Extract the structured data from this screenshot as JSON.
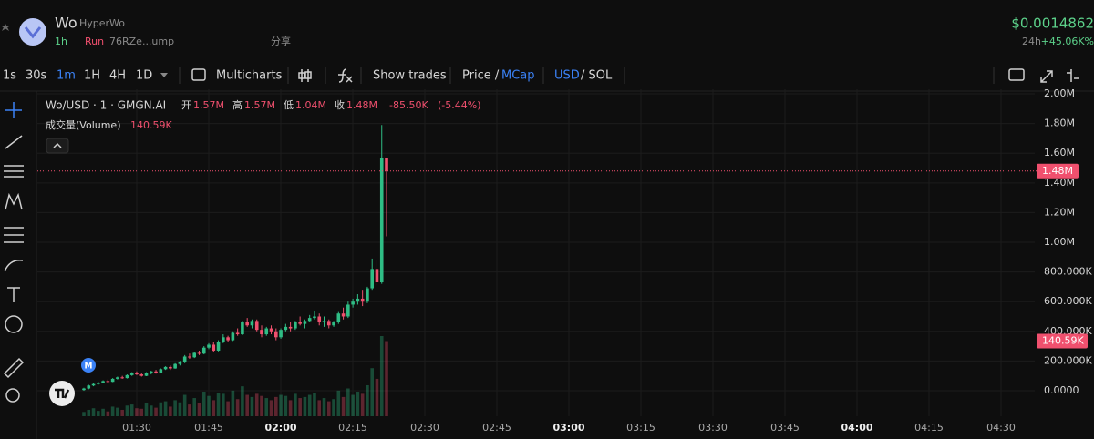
{
  "header": {
    "symbol": "Wo",
    "name": "HyperWo",
    "age": "1h",
    "status": "Run",
    "address": "76RZe...ump",
    "share": "分享",
    "price": "$0.0014862",
    "period": "24h",
    "change": "+45.06K%"
  },
  "toolbar": {
    "intervals": [
      "1s",
      "30s",
      "1m",
      "1H",
      "4H",
      "1D"
    ],
    "multicharts": "Multicharts",
    "show_trades": "Show trades",
    "price": "Price /",
    "mcap": "MCap",
    "usd": "USD",
    "sol": "/ SOL"
  },
  "chart_data": {
    "type": "candlestick",
    "title": "Wo/USD · 1 · GMGN.AI",
    "ohlc_legend": [
      {
        "name": "开",
        "value": 1570000,
        "label": "1.57M"
      },
      {
        "name": "高",
        "value": 1570000,
        "label": "1.57M"
      },
      {
        "name": "低",
        "value": 1040000,
        "label": "1.04M"
      },
      {
        "name": "收",
        "value": 1480000,
        "label": "1.48M"
      }
    ],
    "change": {
      "value": -85500,
      "label": "-85.50K"
    },
    "change_pct": {
      "value": -5.44,
      "label": "(-5.44%)"
    },
    "volume_title": "成交量(Volume)",
    "volume_last": {
      "value": 140590,
      "label": "140.59K"
    },
    "price_last": {
      "value": 1480000,
      "label": "1.48M"
    },
    "event_marker": "M",
    "up_color": "#2fbd85",
    "down_color": "#f0506e",
    "ylim": [
      -172000,
      2031000
    ],
    "yticks": [
      {
        "value": 0,
        "label": "0.0000"
      },
      {
        "value": 200000,
        "label": "200.000K"
      },
      {
        "value": 400000,
        "label": "400.000K"
      },
      {
        "value": 600000,
        "label": "600.000K"
      },
      {
        "value": 800000,
        "label": "800.000K"
      },
      {
        "value": 1000000,
        "label": "1.00M"
      },
      {
        "value": 1200000,
        "label": "1.20M"
      },
      {
        "value": 1400000,
        "label": "1.40M"
      },
      {
        "value": 1600000,
        "label": "1.60M"
      },
      {
        "value": 1800000,
        "label": "1.80M"
      },
      {
        "value": 2000000,
        "label": "2.00M"
      }
    ],
    "xticks": [
      "01:30",
      "01:45",
      "02:00",
      "02:15",
      "02:30",
      "02:45",
      "03:00",
      "03:15",
      "03:30",
      "03:45",
      "04:00",
      "04:15",
      "04:30"
    ],
    "grid": true,
    "candles": [
      [
        5000,
        20000,
        0,
        15000
      ],
      [
        15000,
        40000,
        10000,
        35000
      ],
      [
        35000,
        50000,
        30000,
        45000
      ],
      [
        45000,
        60000,
        40000,
        55000
      ],
      [
        55000,
        70000,
        50000,
        65000
      ],
      [
        65000,
        75000,
        55000,
        60000
      ],
      [
        60000,
        85000,
        58000,
        80000
      ],
      [
        80000,
        95000,
        75000,
        90000
      ],
      [
        90000,
        100000,
        80000,
        85000
      ],
      [
        85000,
        110000,
        82000,
        105000
      ],
      [
        105000,
        125000,
        100000,
        120000
      ],
      [
        120000,
        130000,
        105000,
        110000
      ],
      [
        110000,
        120000,
        95000,
        100000
      ],
      [
        100000,
        125000,
        98000,
        120000
      ],
      [
        120000,
        135000,
        110000,
        130000
      ],
      [
        130000,
        140000,
        115000,
        120000
      ],
      [
        120000,
        150000,
        118000,
        145000
      ],
      [
        145000,
        165000,
        140000,
        160000
      ],
      [
        160000,
        170000,
        140000,
        150000
      ],
      [
        150000,
        185000,
        148000,
        180000
      ],
      [
        180000,
        200000,
        170000,
        190000
      ],
      [
        190000,
        240000,
        185000,
        230000
      ],
      [
        230000,
        250000,
        215000,
        225000
      ],
      [
        225000,
        260000,
        220000,
        255000
      ],
      [
        255000,
        270000,
        240000,
        250000
      ],
      [
        250000,
        300000,
        245000,
        290000
      ],
      [
        290000,
        320000,
        280000,
        310000
      ],
      [
        310000,
        330000,
        260000,
        270000
      ],
      [
        270000,
        340000,
        265000,
        330000
      ],
      [
        330000,
        380000,
        320000,
        360000
      ],
      [
        360000,
        370000,
        330000,
        340000
      ],
      [
        340000,
        400000,
        335000,
        390000
      ],
      [
        390000,
        420000,
        370000,
        380000
      ],
      [
        380000,
        470000,
        375000,
        460000
      ],
      [
        460000,
        490000,
        430000,
        440000
      ],
      [
        440000,
        480000,
        420000,
        470000
      ],
      [
        470000,
        480000,
        400000,
        410000
      ],
      [
        410000,
        440000,
        360000,
        380000
      ],
      [
        380000,
        430000,
        370000,
        420000
      ],
      [
        420000,
        440000,
        380000,
        400000
      ],
      [
        400000,
        420000,
        340000,
        360000
      ],
      [
        360000,
        420000,
        350000,
        410000
      ],
      [
        410000,
        450000,
        400000,
        430000
      ],
      [
        430000,
        460000,
        400000,
        420000
      ],
      [
        420000,
        470000,
        410000,
        460000
      ],
      [
        460000,
        500000,
        440000,
        450000
      ],
      [
        450000,
        480000,
        420000,
        470000
      ],
      [
        470000,
        510000,
        460000,
        490000
      ],
      [
        490000,
        540000,
        480000,
        500000
      ],
      [
        500000,
        520000,
        440000,
        460000
      ],
      [
        460000,
        500000,
        430000,
        470000
      ],
      [
        470000,
        480000,
        420000,
        440000
      ],
      [
        440000,
        470000,
        430000,
        460000
      ],
      [
        460000,
        530000,
        450000,
        520000
      ],
      [
        520000,
        560000,
        480000,
        500000
      ],
      [
        500000,
        600000,
        490000,
        580000
      ],
      [
        580000,
        620000,
        560000,
        600000
      ],
      [
        600000,
        650000,
        580000,
        620000
      ],
      [
        620000,
        680000,
        570000,
        600000
      ],
      [
        600000,
        700000,
        590000,
        690000
      ],
      [
        690000,
        890000,
        680000,
        820000
      ],
      [
        820000,
        880000,
        710000,
        730000
      ],
      [
        730000,
        1790000,
        720000,
        1570000
      ],
      [
        1570000,
        1570000,
        1040000,
        1480000
      ]
    ],
    "volumes": [
      8000,
      12000,
      15000,
      10000,
      14000,
      9000,
      18000,
      16000,
      12000,
      20000,
      22000,
      15000,
      14000,
      24000,
      20000,
      16000,
      26000,
      28000,
      18000,
      30000,
      26000,
      40000,
      22000,
      34000,
      24000,
      46000,
      38000,
      30000,
      44000,
      42000,
      28000,
      48000,
      32000,
      56000,
      40000,
      36000,
      42000,
      38000,
      34000,
      30000,
      36000,
      40000,
      38000,
      30000,
      42000,
      34000,
      36000,
      40000,
      44000,
      30000,
      34000,
      28000,
      32000,
      48000,
      36000,
      52000,
      40000,
      46000,
      42000,
      58000,
      90000,
      70000,
      150000,
      140590
    ]
  }
}
